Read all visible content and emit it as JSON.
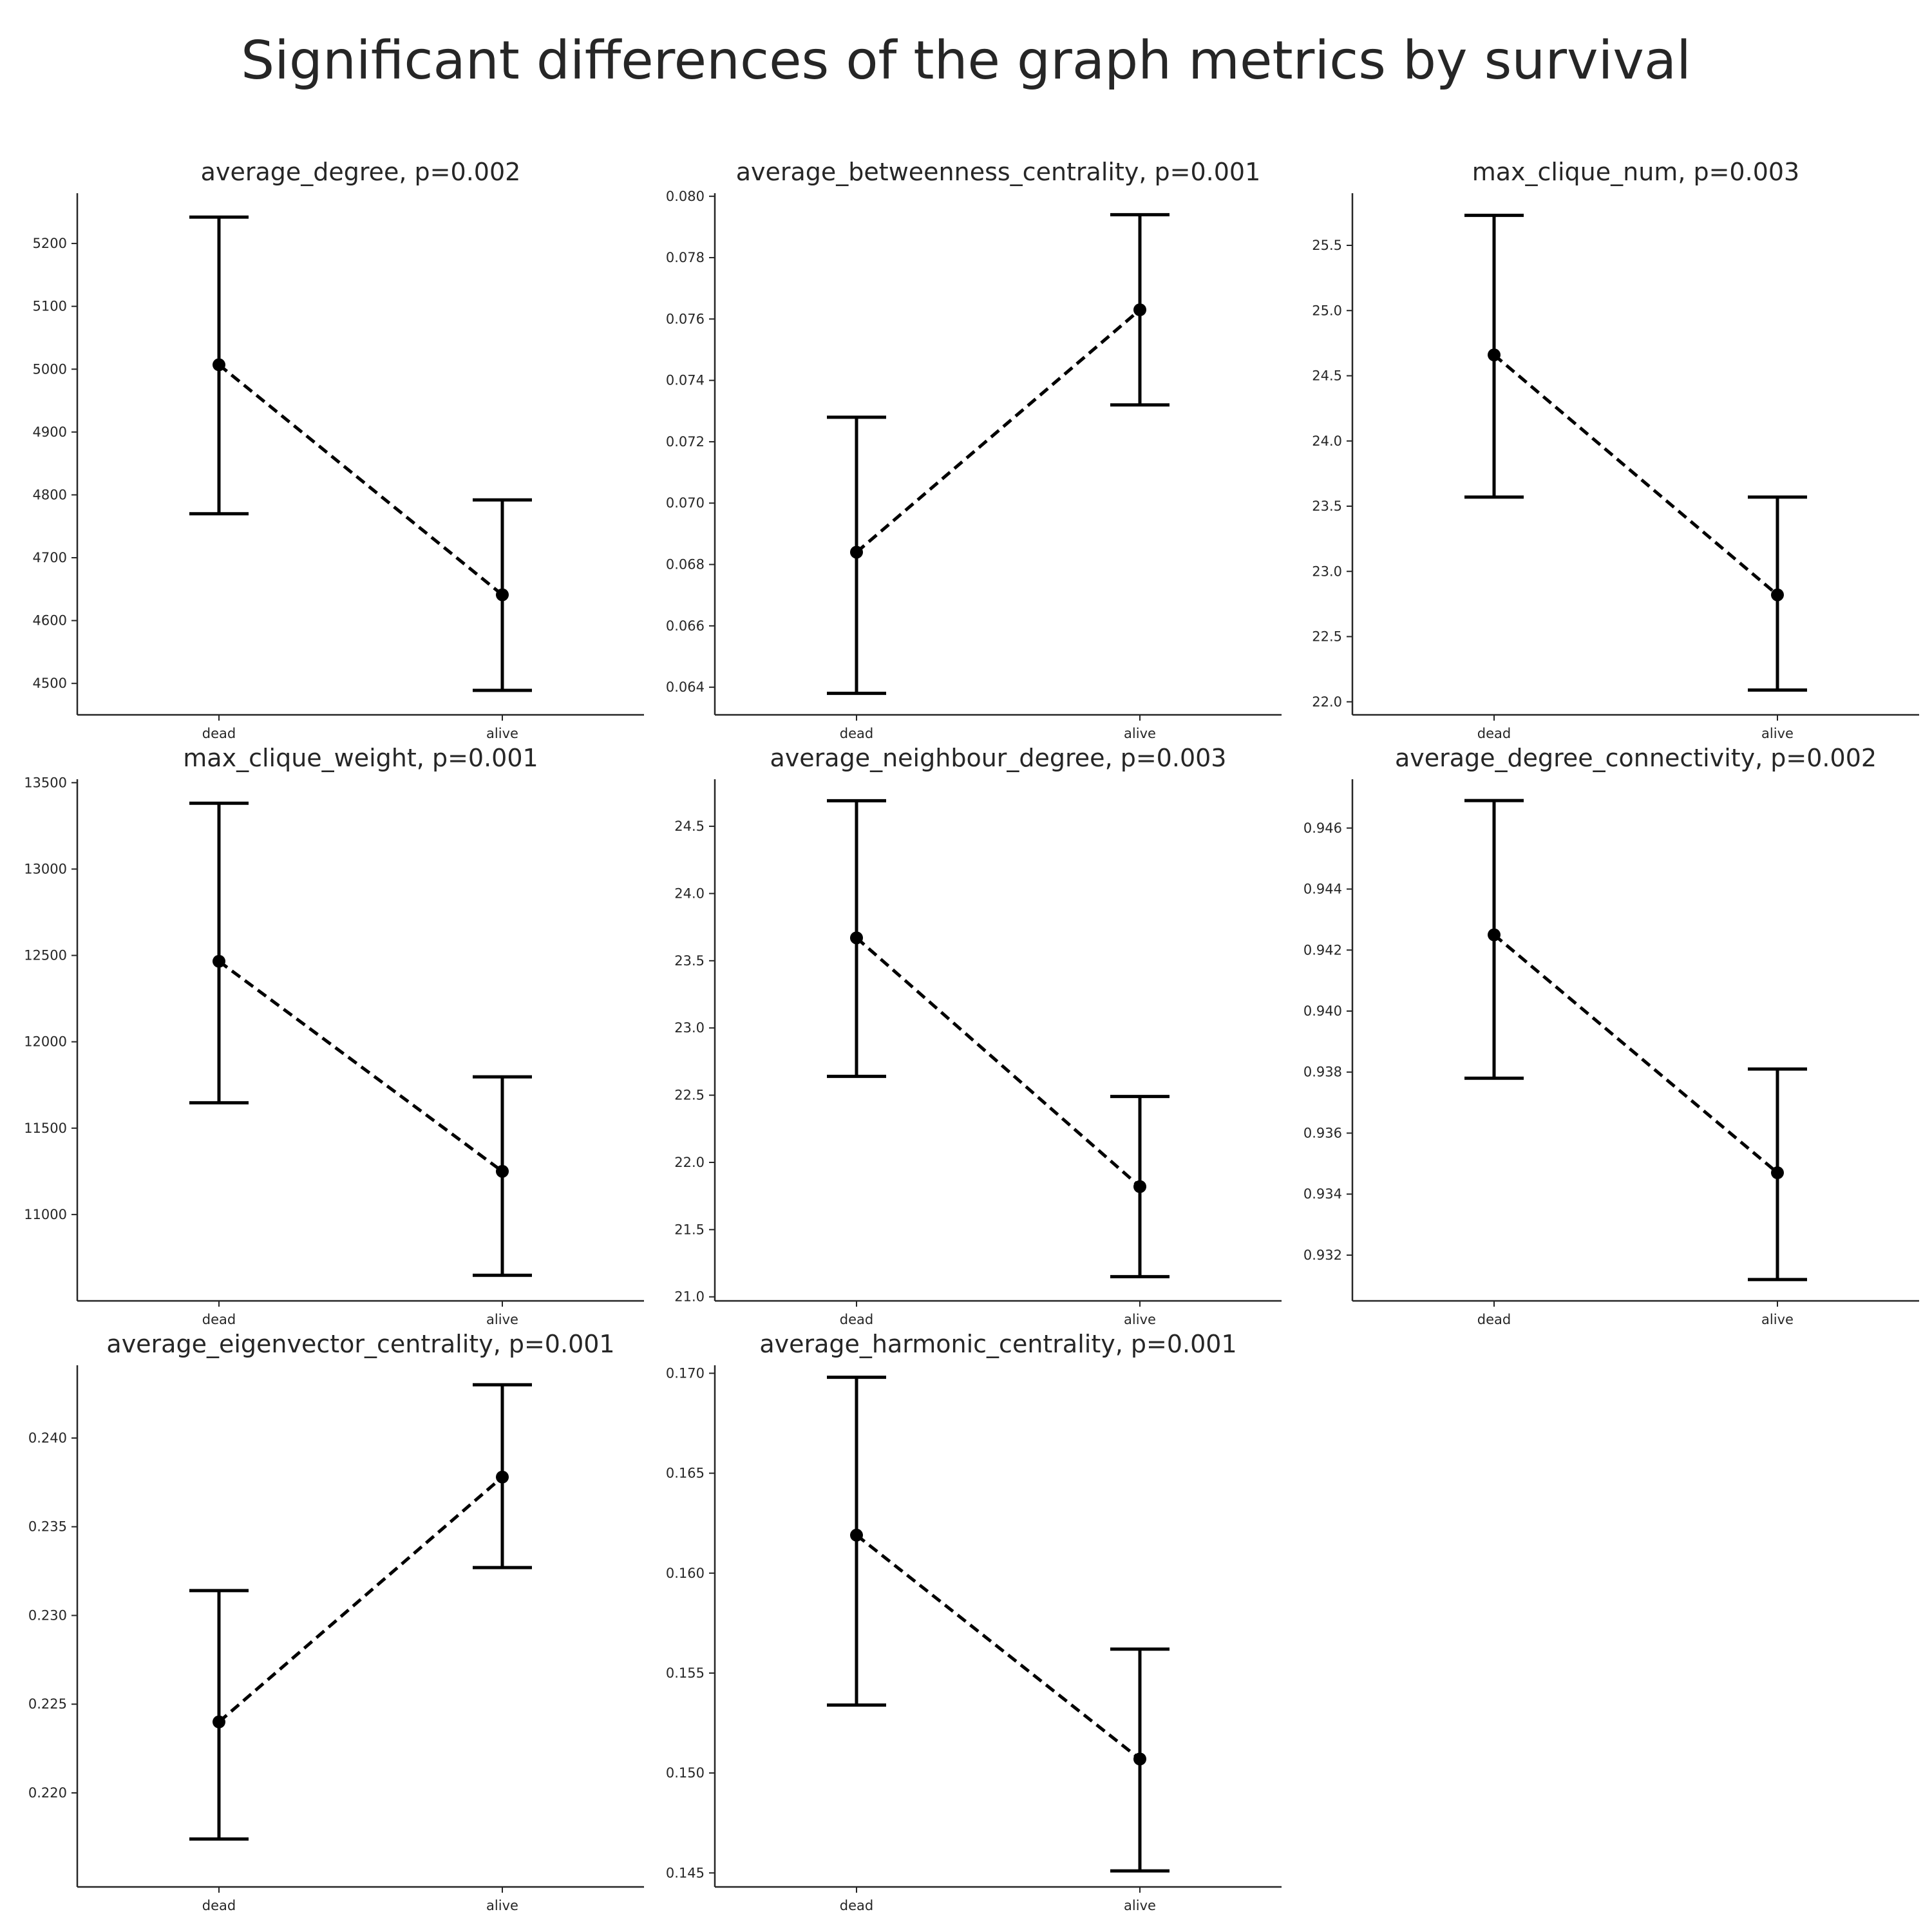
{
  "chart_data": {
    "title": "Significant differences of the graph metrics by survival",
    "type": "pointplot-errorbar",
    "categories": [
      "dead",
      "alive"
    ],
    "line_style": "dashed",
    "color": "#000000",
    "panels": [
      {
        "title": "average_degree, p=0.002",
        "ylim": [
          4450,
          5280
        ],
        "yticks": [
          4500,
          4600,
          4700,
          4800,
          4900,
          5000,
          5100,
          5200
        ],
        "ytick_labels": [
          "4500",
          "4600",
          "4700",
          "4800",
          "4900",
          "5000",
          "5100",
          "5200"
        ],
        "means": [
          5007,
          4641
        ],
        "lower": [
          4770,
          4489
        ],
        "upper": [
          5242,
          4792
        ]
      },
      {
        "title": "average_betweenness_centrality, p=0.001",
        "ylim": [
          0.0631,
          0.0801
        ],
        "yticks": [
          0.064,
          0.066,
          0.068,
          0.07,
          0.072,
          0.074,
          0.076,
          0.078,
          0.08
        ],
        "ytick_labels": [
          "0.064",
          "0.066",
          "0.068",
          "0.070",
          "0.072",
          "0.074",
          "0.076",
          "0.078",
          "0.080"
        ],
        "means": [
          0.0684,
          0.0763
        ],
        "lower": [
          0.0638,
          0.0732
        ],
        "upper": [
          0.0728,
          0.0794
        ]
      },
      {
        "title": "max_clique_num, p=0.003",
        "ylim": [
          21.9,
          25.9
        ],
        "yticks": [
          22.0,
          22.5,
          23.0,
          23.5,
          24.0,
          24.5,
          25.0,
          25.5
        ],
        "ytick_labels": [
          "22.0",
          "22.5",
          "23.0",
          "23.5",
          "24.0",
          "24.5",
          "25.0",
          "25.5"
        ],
        "means": [
          24.66,
          22.82
        ],
        "lower": [
          23.57,
          22.09
        ],
        "upper": [
          25.73,
          23.57
        ]
      },
      {
        "title": "max_clique_weight, p=0.001",
        "ylim": [
          10500,
          13520
        ],
        "yticks": [
          11000,
          11500,
          12000,
          12500,
          13000,
          13500
        ],
        "ytick_labels": [
          "11000",
          "11500",
          "12000",
          "12500",
          "13000",
          "13500"
        ],
        "means": [
          12466,
          11250
        ],
        "lower": [
          11647,
          10648
        ],
        "upper": [
          13381,
          11797
        ]
      },
      {
        "title": "average_neighbour_degree, p=0.003",
        "ylim": [
          20.97,
          24.85
        ],
        "yticks": [
          21.0,
          21.5,
          22.0,
          22.5,
          23.0,
          23.5,
          24.0,
          24.5
        ],
        "ytick_labels": [
          "21.0",
          "21.5",
          "22.0",
          "22.5",
          "23.0",
          "23.5",
          "24.0",
          "24.5"
        ],
        "means": [
          23.67,
          21.82
        ],
        "lower": [
          22.64,
          21.15
        ],
        "upper": [
          24.69,
          22.49
        ]
      },
      {
        "title": "average_degree_connectivity, p=0.002",
        "ylim": [
          0.9305,
          0.9476
        ],
        "yticks": [
          0.932,
          0.934,
          0.936,
          0.938,
          0.94,
          0.942,
          0.944,
          0.946
        ],
        "ytick_labels": [
          "0.932",
          "0.934",
          "0.936",
          "0.938",
          "0.940",
          "0.942",
          "0.944",
          "0.946"
        ],
        "means": [
          0.9425,
          0.9347
        ],
        "lower": [
          0.9378,
          0.9312
        ],
        "upper": [
          0.9469,
          0.9381
        ]
      },
      {
        "title": "average_eigenvector_centrality, p=0.001",
        "ylim": [
          0.2147,
          0.2441
        ],
        "yticks": [
          0.22,
          0.225,
          0.23,
          0.235,
          0.24
        ],
        "ytick_labels": [
          "0.220",
          "0.225",
          "0.230",
          "0.235",
          "0.240"
        ],
        "means": [
          0.224,
          0.2378
        ],
        "lower": [
          0.2174,
          0.2327
        ],
        "upper": [
          0.2314,
          0.243
        ]
      },
      {
        "title": "average_harmonic_centrality, p=0.001",
        "ylim": [
          0.1443,
          0.1704
        ],
        "yticks": [
          0.145,
          0.15,
          0.155,
          0.16,
          0.165,
          0.17
        ],
        "ytick_labels": [
          "0.145",
          "0.150",
          "0.155",
          "0.160",
          "0.165",
          "0.170"
        ],
        "means": [
          0.1619,
          0.1507
        ],
        "lower": [
          0.1534,
          0.1451
        ],
        "upper": [
          0.1698,
          0.1562
        ]
      }
    ]
  }
}
